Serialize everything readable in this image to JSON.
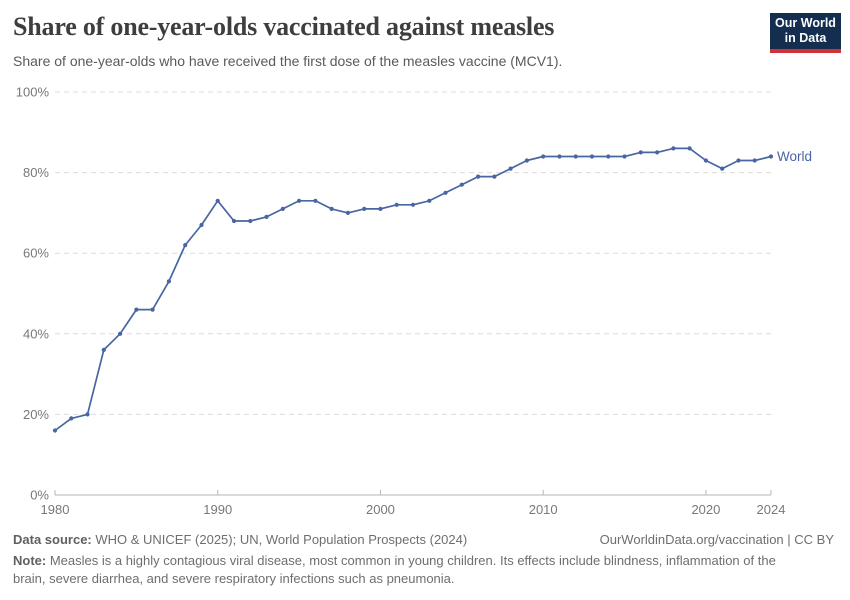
{
  "header": {
    "title": "Share of one-year-olds vaccinated against measles",
    "subtitle": "Share of one-year-olds who have received the first dose of the measles vaccine (MCV1)."
  },
  "logo": {
    "line1": "Our World",
    "line2": "in Data"
  },
  "colors": {
    "line": "#4766a2",
    "grid": "#dcdcdc",
    "axis": "#b5b5b5",
    "tick_text": "#787878",
    "logo_bg": "#132e4f",
    "logo_bar": "#d13239"
  },
  "chart_data": {
    "type": "line",
    "title": "Share of one-year-olds vaccinated against measles",
    "subtitle": "Share of one-year-olds who have received the first dose of the measles vaccine (MCV1).",
    "x": [
      1980,
      1981,
      1982,
      1983,
      1984,
      1985,
      1986,
      1987,
      1988,
      1989,
      1990,
      1991,
      1992,
      1993,
      1994,
      1995,
      1996,
      1997,
      1998,
      1999,
      2000,
      2001,
      2002,
      2003,
      2004,
      2005,
      2006,
      2007,
      2008,
      2009,
      2010,
      2011,
      2012,
      2013,
      2014,
      2015,
      2016,
      2017,
      2018,
      2019,
      2020,
      2021,
      2022,
      2023,
      2024
    ],
    "series": [
      {
        "name": "World",
        "color": "#4766a2",
        "values": [
          16,
          19,
          20,
          36,
          40,
          46,
          46,
          53,
          62,
          67,
          73,
          68,
          68,
          69,
          71,
          73,
          73,
          71,
          70,
          71,
          71,
          72,
          72,
          73,
          75,
          77,
          79,
          79,
          81,
          83,
          84,
          84,
          84,
          84,
          84,
          84,
          85,
          85,
          86,
          86,
          83,
          81,
          83,
          83,
          84
        ]
      }
    ],
    "xlabel": "",
    "ylabel": "",
    "xlim": [
      1980,
      2024
    ],
    "ylim": [
      0,
      100
    ],
    "xticks": [
      1980,
      1990,
      2000,
      2010,
      2020,
      2024
    ],
    "yticks": [
      0,
      20,
      40,
      60,
      80,
      100
    ],
    "ytick_suffix": "%",
    "grid": "dashed-horizontal",
    "legend_position": "end-of-line-label"
  },
  "footer": {
    "datasource_label": "Data source:",
    "datasource_text": " WHO & UNICEF (2025); UN, World Population Prospects (2024)",
    "link": "OurWorldinData.org/vaccination",
    "license": " | CC BY",
    "note_label": "Note:",
    "note_text": " Measles is a highly contagious viral disease, most common in young children. Its effects include blindness, inflammation of the brain, severe diarrhea, and severe respiratory infections such as pneumonia."
  }
}
